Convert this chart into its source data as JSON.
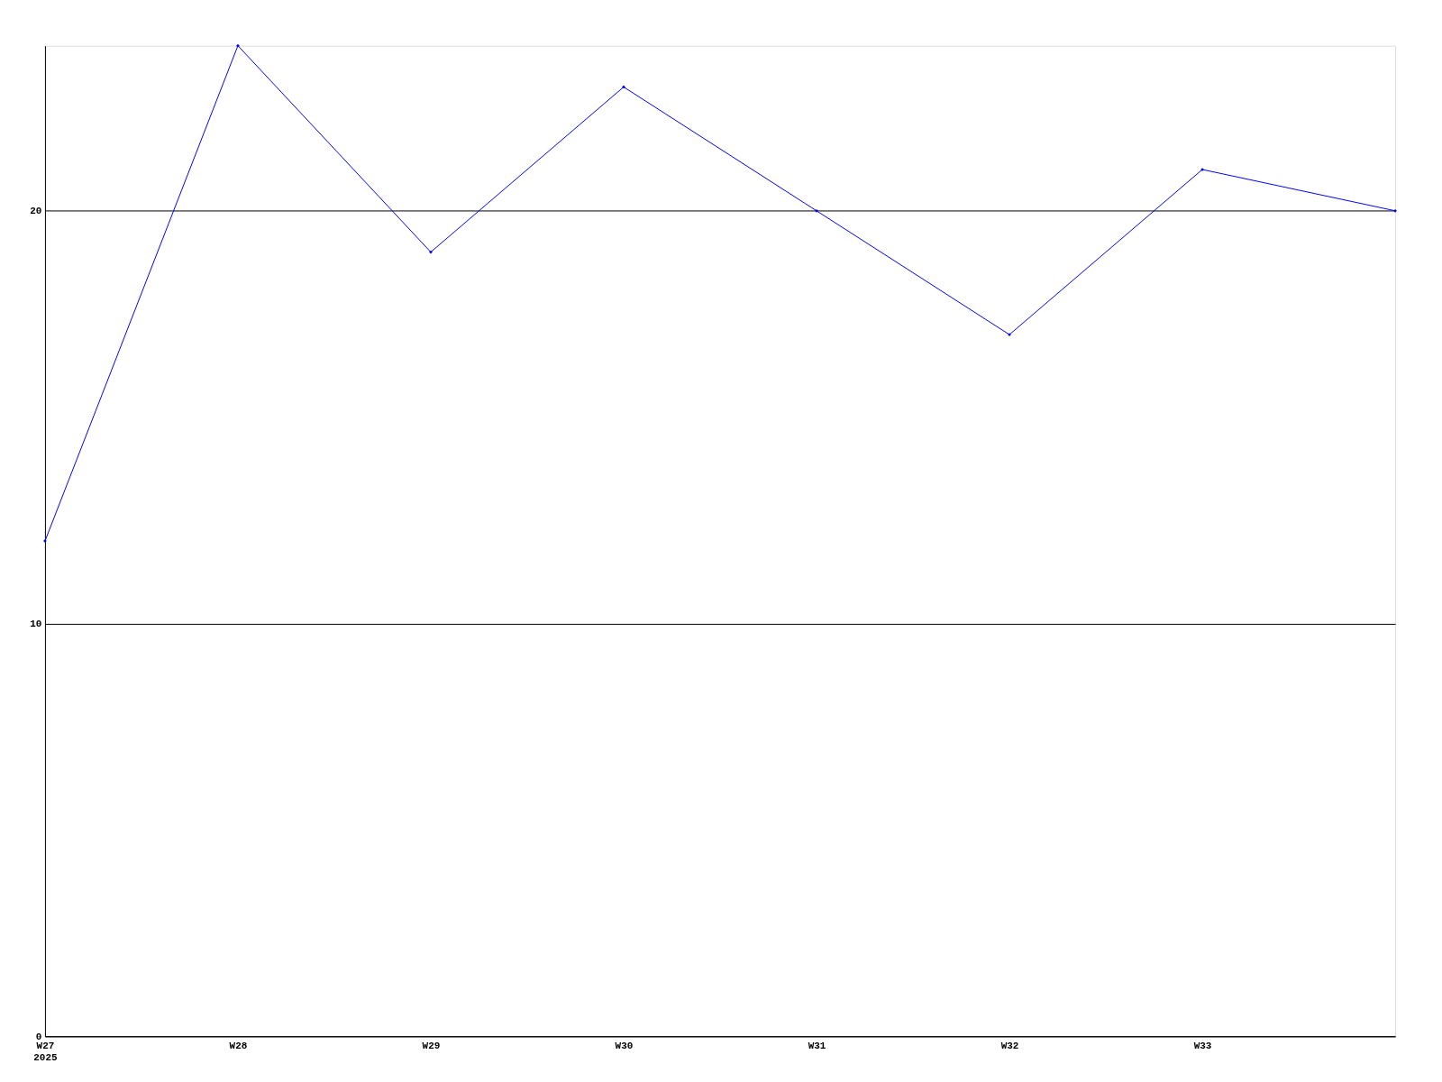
{
  "chart_data": {
    "type": "line",
    "categories": [
      "W27\n2025",
      "W28",
      "W29",
      "W30",
      "W31",
      "W32",
      "W33",
      null
    ],
    "series": [
      {
        "color": "#0000ff",
        "values": [
          12,
          24,
          19,
          23,
          20,
          17,
          21,
          20
        ]
      }
    ],
    "ylim": [
      0,
      24
    ],
    "yticks": [
      0,
      10,
      20
    ],
    "grid": "y",
    "marker": "diamond",
    "line_style": "solid"
  }
}
